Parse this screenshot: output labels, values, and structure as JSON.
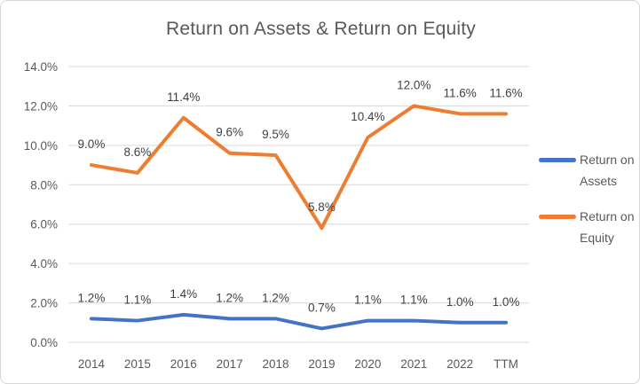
{
  "chart_data": {
    "type": "line",
    "title": "Return on Assets & Return on Equity",
    "categories": [
      "2014",
      "2015",
      "2016",
      "2017",
      "2018",
      "2019",
      "2020",
      "2021",
      "2022",
      "TTM"
    ],
    "series": [
      {
        "name": "Return on Assets",
        "color": "#4472C4",
        "values": [
          1.2,
          1.1,
          1.4,
          1.2,
          1.2,
          0.7,
          1.1,
          1.1,
          1.0,
          1.0
        ],
        "labels": [
          "1.2%",
          "1.1%",
          "1.4%",
          "1.2%",
          "1.2%",
          "0.7%",
          "1.1%",
          "1.1%",
          "1.0%",
          "1.0%"
        ]
      },
      {
        "name": "Return on Equity",
        "color": "#ED7D31",
        "values": [
          9.0,
          8.6,
          11.4,
          9.6,
          9.5,
          5.8,
          10.4,
          12.0,
          11.6,
          11.6
        ],
        "labels": [
          "9.0%",
          "8.6%",
          "11.4%",
          "9.6%",
          "9.5%",
          "5.8%",
          "10.4%",
          "12.0%",
          "11.6%",
          "11.6%"
        ]
      }
    ],
    "y_axis": {
      "min": 0,
      "max": 14,
      "step": 2,
      "tick_labels": [
        "0.0%",
        "2.0%",
        "4.0%",
        "6.0%",
        "8.0%",
        "10.0%",
        "12.0%",
        "14.0%"
      ]
    },
    "legend_position": "right",
    "grid": true,
    "data_labels": true,
    "colors": {
      "axis_text": "#595959",
      "data_label_text": "#404040",
      "gridline": "#d9d9d9",
      "border": "#d7d7d7",
      "title_text": "#595959"
    }
  }
}
